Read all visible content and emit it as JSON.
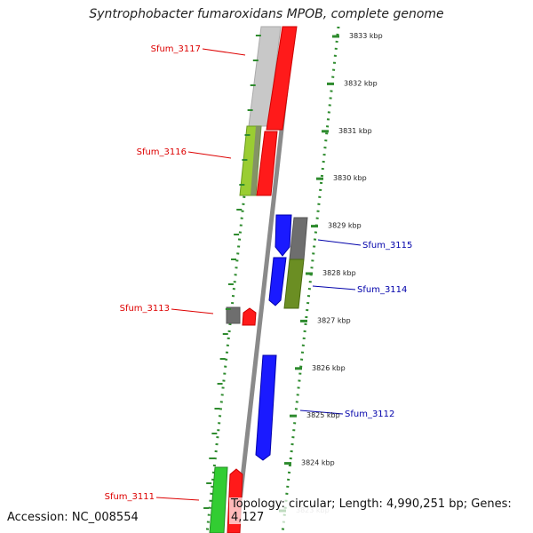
{
  "title": "Syntrophobacter fumaroxidans MPOB, complete genome",
  "footer": {
    "accession": "Accession: NC_008554",
    "stats": "Topology: circular; Length: 4,990,251 bp; Genes: 4,127"
  },
  "scale_ticks": [
    {
      "label": "3833 kbp"
    },
    {
      "label": "3832 kbp"
    },
    {
      "label": "3831 kbp"
    },
    {
      "label": "3830 kbp"
    },
    {
      "label": "3829 kbp"
    },
    {
      "label": "3828 kbp"
    },
    {
      "label": "3827 kbp"
    },
    {
      "label": "3826 kbp"
    },
    {
      "label": "3825 kbp"
    },
    {
      "label": "3824 kbp"
    },
    {
      "label": "3823 kbp"
    }
  ],
  "gene_labels": [
    {
      "name": "Sfum_3117",
      "strand": "outer",
      "color": "#dd0000"
    },
    {
      "name": "Sfum_3116",
      "strand": "outer",
      "color": "#dd0000"
    },
    {
      "name": "Sfum_3115",
      "strand": "inner",
      "color": "#0000aa"
    },
    {
      "name": "Sfum_3114",
      "strand": "inner",
      "color": "#0000aa"
    },
    {
      "name": "Sfum_3113",
      "strand": "outer",
      "color": "#dd0000"
    },
    {
      "name": "Sfum_3112",
      "strand": "inner",
      "color": "#0000aa"
    },
    {
      "name": "Sfum_3111",
      "strand": "outer",
      "color": "#dd0000"
    }
  ],
  "colors": {
    "tick_green": "#2e8b2e",
    "backbone": "#8a8a8a",
    "gene_red": "#ff1a1a",
    "gene_blue": "#1a1aff",
    "gene_gray": "#6e6e6e",
    "gene_lightgray": "#c8c8c8",
    "gene_lime": "#9acd32",
    "gene_olive": "#6b8e23",
    "gene_green": "#32cd32"
  }
}
